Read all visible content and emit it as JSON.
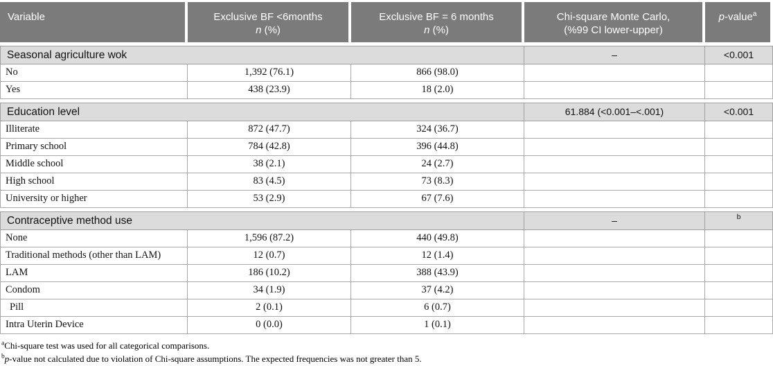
{
  "colors": {
    "header_bg": "#7b7b7b",
    "section_bg": "#dcdcdc",
    "border": "#a9a9a9"
  },
  "header": {
    "variable": "Variable",
    "bf_lt6_line1": "Exclusive BF <6months",
    "bf_eq6_line1": "Exclusive BF = 6 months",
    "n_label": "n",
    "pct_label": " (%)",
    "chi_line1": "Chi-square Monte Carlo,",
    "chi_line2": "(%99 CI lower-upper)",
    "p_italic": "p",
    "p_rest": "-value",
    "p_sup": "a"
  },
  "sections": [
    {
      "title": "Seasonal agriculture wok",
      "chi_square": "–",
      "p_value": "<0.001",
      "rows": [
        {
          "label": "No",
          "bf_lt6": "1,392 (76.1)",
          "bf_eq6": "866 (98.0)"
        },
        {
          "label": "Yes",
          "bf_lt6": "438 (23.9)",
          "bf_eq6": "18 (2.0)"
        }
      ]
    },
    {
      "title": "Education level",
      "chi_square": "61.884 (<0.001–<.001)",
      "p_value": "<0.001",
      "rows": [
        {
          "label": "Illiterate",
          "bf_lt6": "872 (47.7)",
          "bf_eq6": "324 (36.7)"
        },
        {
          "label": "Primary school",
          "bf_lt6": "784 (42.8)",
          "bf_eq6": "396 (44.8)"
        },
        {
          "label": "Middle school",
          "bf_lt6": "38 (2.1)",
          "bf_eq6": "24 (2.7)"
        },
        {
          "label": "High school",
          "bf_lt6": "83 (4.5)",
          "bf_eq6": "73 (8.3)"
        },
        {
          "label": "University or higher",
          "bf_lt6": "53 (2.9)",
          "bf_eq6": "67 (7.6)"
        }
      ]
    },
    {
      "title": "Contraceptive method use",
      "chi_square": "–",
      "p_value": "b",
      "rows": [
        {
          "label": "None",
          "bf_lt6": "1,596 (87.2)",
          "bf_eq6": "440 (49.8)"
        },
        {
          "label": "Traditional methods (other than LAM)",
          "bf_lt6": "12 (0.7)",
          "bf_eq6": "12 (1.4)"
        },
        {
          "label": "LAM",
          "bf_lt6": "186 (10.2)",
          "bf_eq6": "388 (43.9)"
        },
        {
          "label": "Condom",
          "bf_lt6": "34 (1.9)",
          "bf_eq6": "37 (4.2)"
        },
        {
          "label": "Pill",
          "bf_lt6": "2 (0.1)",
          "bf_eq6": "6 (0.7)"
        },
        {
          "label": "Intra Uterin Device",
          "bf_lt6": "0 (0.0)",
          "bf_eq6": "1 (0.1)"
        }
      ]
    }
  ],
  "footnotes": [
    {
      "sup": "a",
      "text": "Chi-square test was used for all categorical comparisons."
    },
    {
      "sup": "b",
      "italic": "p",
      "text": "-value not calculated due to violation of Chi-square assumptions. The expected frequencies was not greater than 5."
    }
  ]
}
